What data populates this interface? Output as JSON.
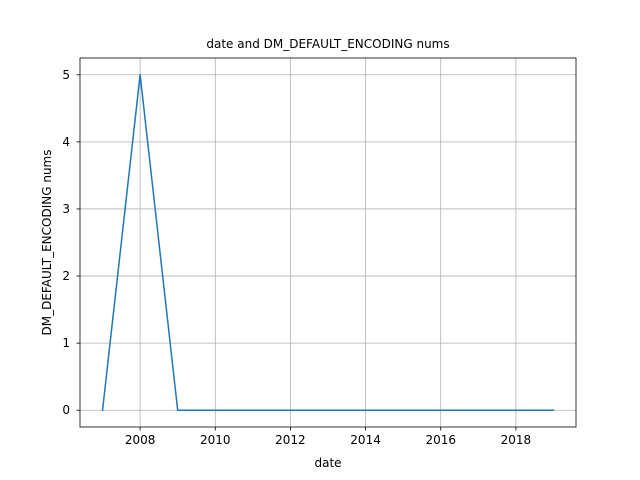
{
  "chart_data": {
    "type": "line",
    "title": "date and DM_DEFAULT_ENCODING nums",
    "xlabel": "date",
    "ylabel": "DM_DEFAULT_ENCODING nums",
    "x": [
      2007,
      2008,
      2009,
      2010,
      2011,
      2012,
      2013,
      2014,
      2015,
      2016,
      2017,
      2018,
      2019
    ],
    "series": [
      {
        "values": [
          0,
          5,
          0,
          0,
          0,
          0,
          0,
          0,
          0,
          0,
          0,
          0,
          0
        ],
        "color": "#1f77b4"
      }
    ],
    "xticks": [
      "2008",
      "2010",
      "2012",
      "2014",
      "2016",
      "2018"
    ],
    "yticks": [
      "0",
      "1",
      "2",
      "3",
      "4",
      "5"
    ],
    "xlim": [
      2006.4,
      2019.6
    ],
    "ylim": [
      -0.25,
      5.25
    ],
    "grid": true
  }
}
